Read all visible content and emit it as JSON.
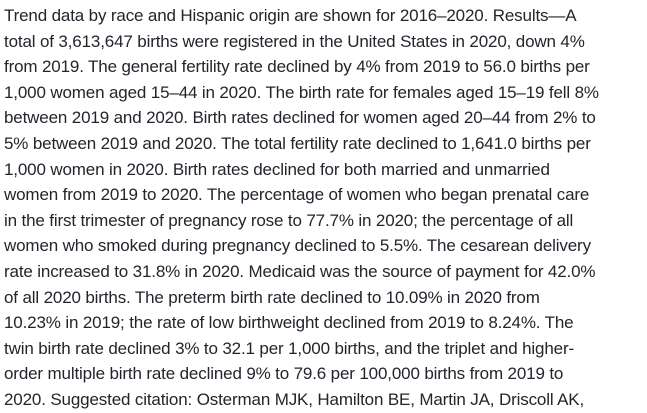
{
  "colors": {
    "background": "#ffffff",
    "text": "#24242c"
  },
  "document": {
    "lines": [
      "Trend data by race and Hispanic origin are shown for 2016–2020. Results—A",
      "total of 3,613,647 births were registered in the United States in 2020, down 4%",
      "from 2019. The general fertility rate declined by 4% from 2019 to 56.0 births per",
      "1,000 women aged 15–44 in 2020. The birth rate for females aged 15–19 fell 8%",
      "between 2019 and 2020. Birth rates declined for women aged 20–44 from 2% to",
      "5% between 2019 and 2020. The total fertility rate declined to 1,641.0 births per",
      "1,000 women in 2020. Birth rates declined for both married and unmarried",
      "women from 2019 to 2020. The percentage of women who began prenatal care",
      "in the first trimester of pregnancy rose to 77.7% in 2020; the percentage of all",
      "women who smoked during pregnancy declined to 5.5%. The cesarean delivery",
      "rate increased to 31.8% in 2020. Medicaid was the source of payment for 42.0%",
      "of all 2020 births. The preterm birth rate declined to 10.09% in 2020 from",
      "10.23% in 2019; the rate of low birthweight declined from 2019 to 8.24%. The",
      "twin birth rate declined 3% to 32.1 per 1,000 births, and the triplet and higher-",
      "order multiple birth rate declined 9% to 79.6 per 100,000 births from 2019 to",
      "2020. Suggested citation: Osterman MJK, Hamilton BE, Martin JA, Driscoll AK,"
    ]
  }
}
